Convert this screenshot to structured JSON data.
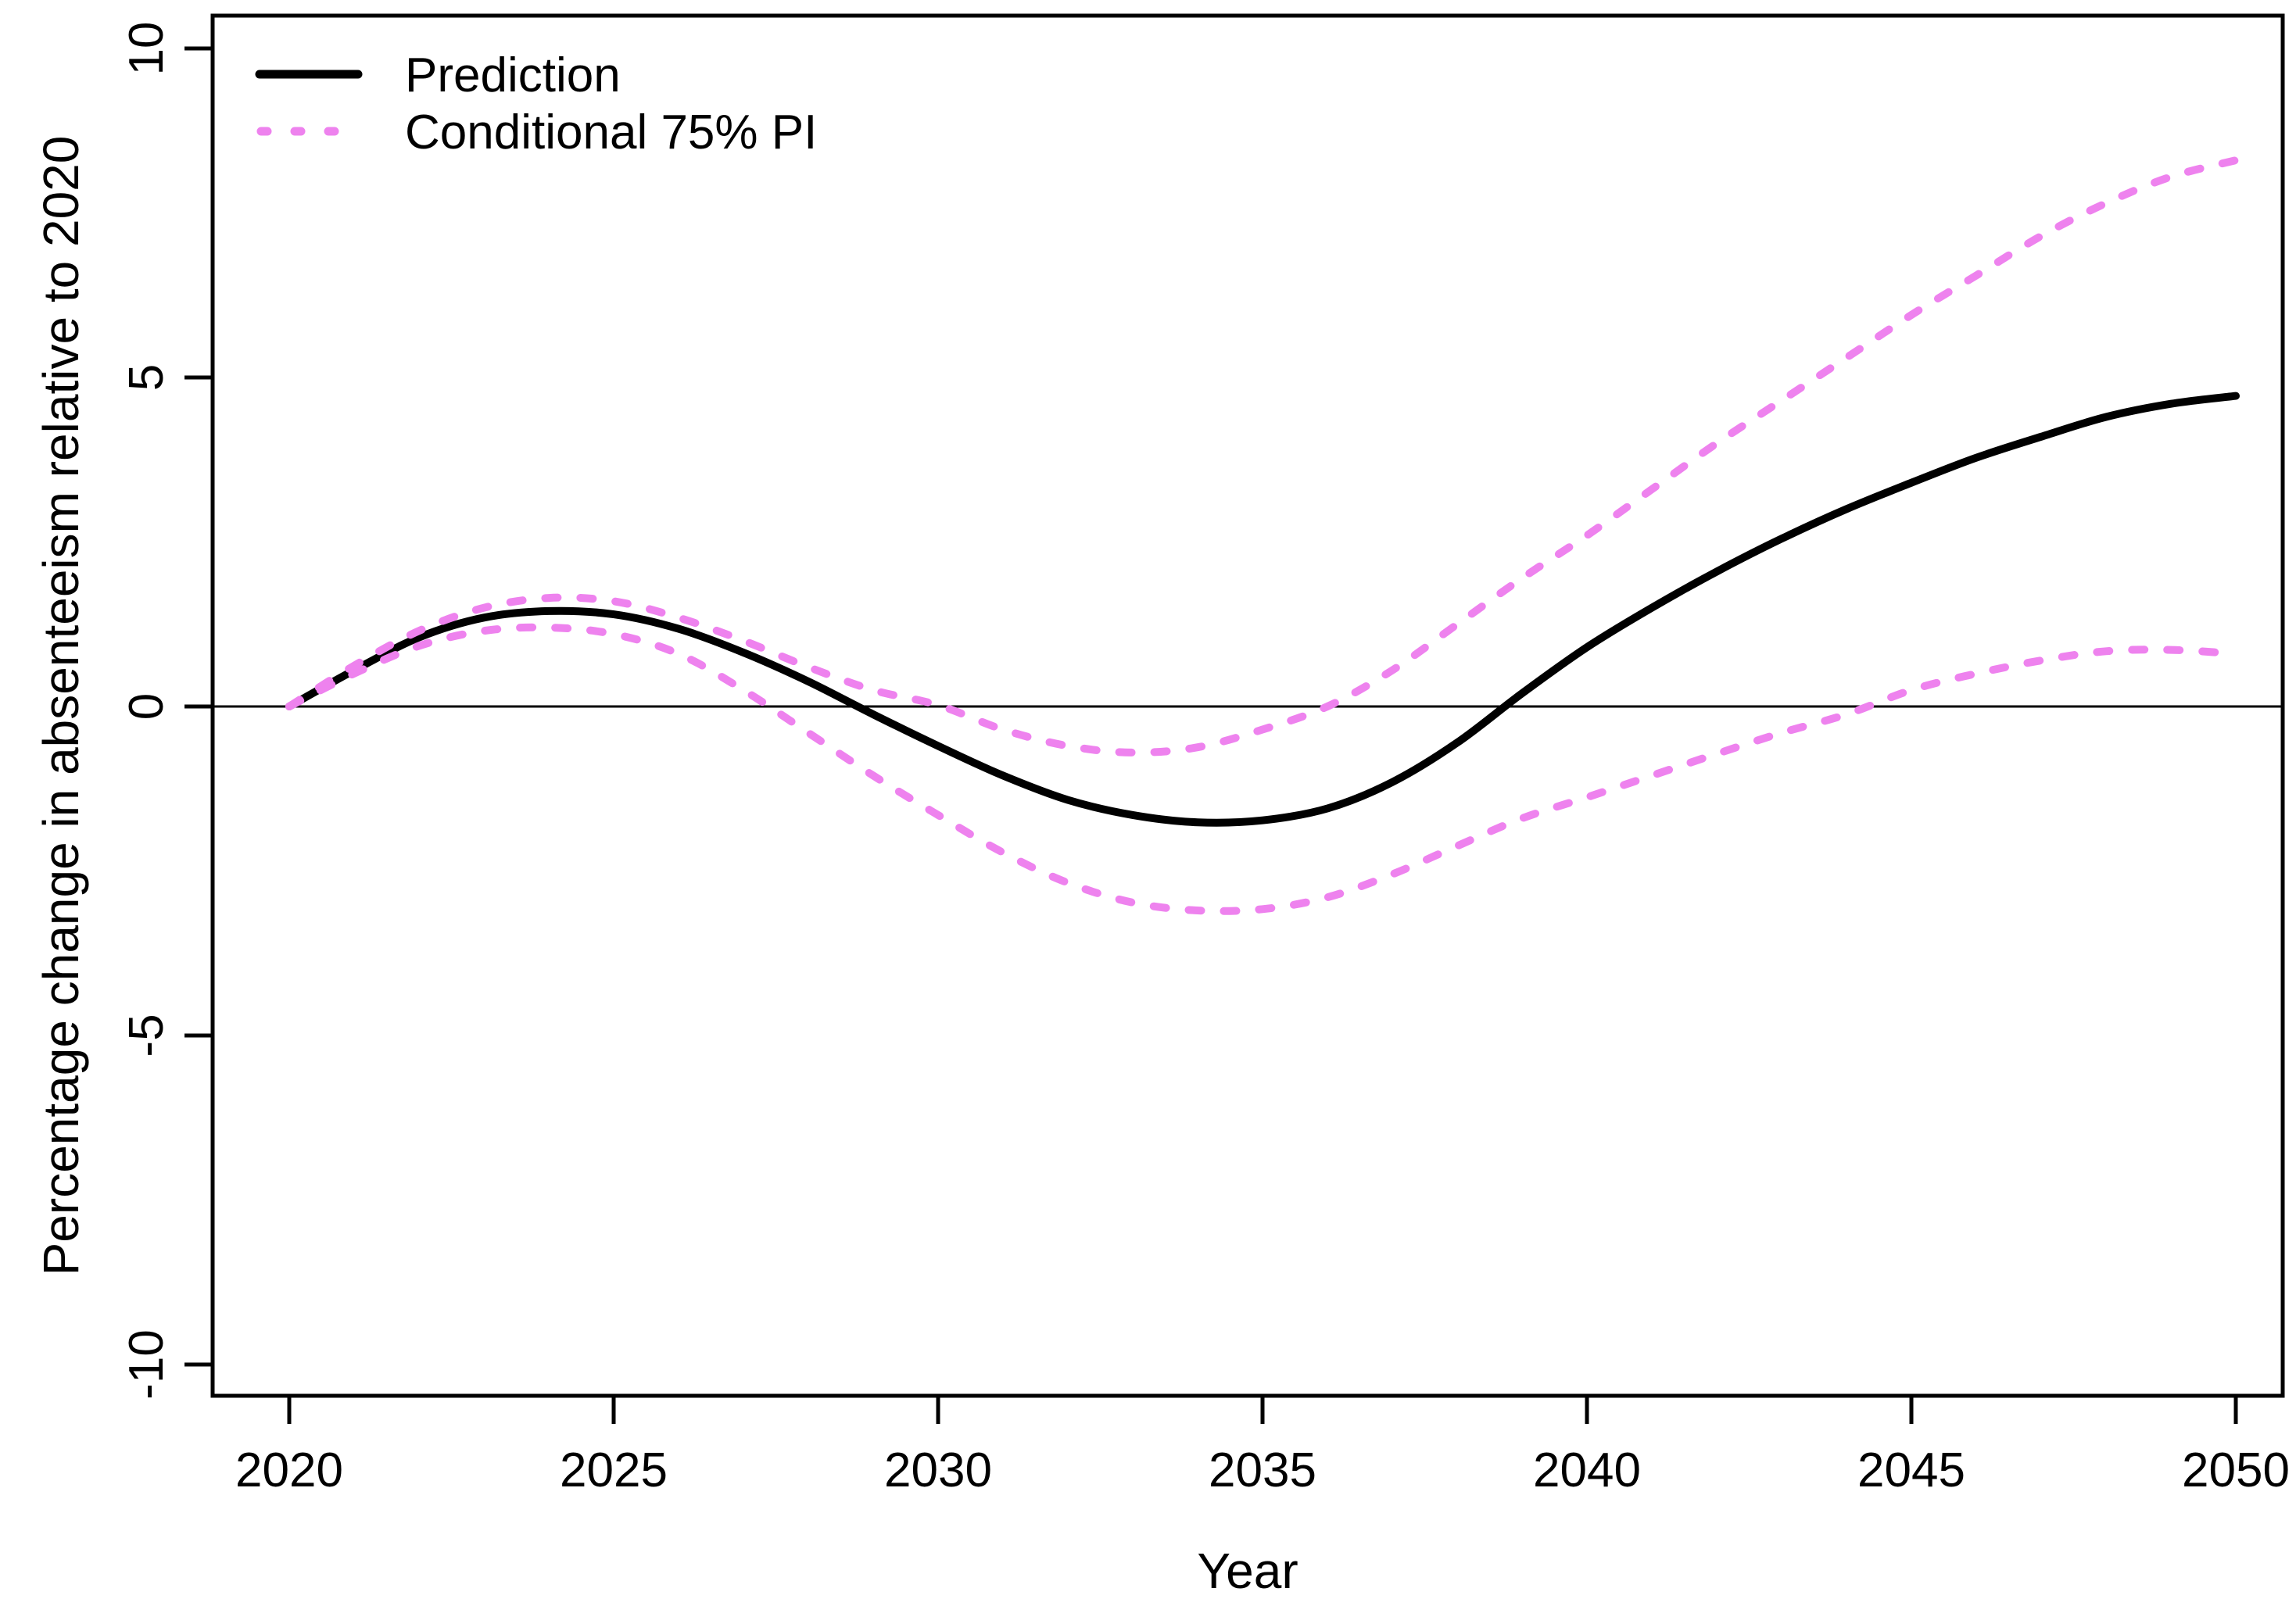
{
  "figure": {
    "background": "#FFFFFF"
  },
  "chart_data": {
    "type": "line",
    "title": "",
    "xlabel": "Year",
    "ylabel": "Percentage change in absenteeism relative to 2020",
    "x_ticks": [
      2020,
      2025,
      2030,
      2035,
      2040,
      2045,
      2050
    ],
    "y_ticks": [
      -10,
      -5,
      0,
      5,
      10
    ],
    "xlim": [
      2018.8,
      2051.2
    ],
    "ylim": [
      -10.5,
      10.5
    ],
    "grid": false,
    "reference_line_y": 0,
    "legend_position": "top-left",
    "x": [
      2020,
      2021,
      2022,
      2023,
      2024,
      2025,
      2026,
      2027,
      2028,
      2029,
      2030,
      2031,
      2032,
      2033,
      2034,
      2035,
      2036,
      2037,
      2038,
      2039,
      2040,
      2041,
      2042,
      2043,
      2044,
      2045,
      2046,
      2047,
      2048,
      2049,
      2050
    ],
    "series": [
      {
        "name": "Prediction",
        "style": "solid",
        "color": "#000000",
        "values": [
          0,
          0.55,
          1.05,
          1.35,
          1.45,
          1.4,
          1.18,
          0.82,
          0.38,
          -0.12,
          -0.6,
          -1.05,
          -1.42,
          -1.65,
          -1.76,
          -1.73,
          -1.55,
          -1.15,
          -0.55,
          0.2,
          0.9,
          1.5,
          2.05,
          2.55,
          3.0,
          3.4,
          3.78,
          4.1,
          4.4,
          4.6,
          4.72
        ]
      },
      {
        "name": "Conditional 75% PI upper",
        "style": "dotted",
        "color": "#EE82EE",
        "values": [
          0,
          0.62,
          1.15,
          1.5,
          1.65,
          1.6,
          1.35,
          1.0,
          0.6,
          0.25,
          0.02,
          -0.35,
          -0.6,
          -0.7,
          -0.62,
          -0.35,
          0.0,
          0.55,
          1.25,
          1.95,
          2.6,
          3.3,
          4.0,
          4.65,
          5.3,
          5.95,
          6.55,
          7.15,
          7.65,
          8.05,
          8.3
        ]
      },
      {
        "name": "Conditional 75% PI lower",
        "style": "dotted",
        "color": "#EE82EE",
        "values": [
          0,
          0.5,
          0.92,
          1.15,
          1.2,
          1.1,
          0.8,
          0.25,
          -0.4,
          -1.05,
          -1.65,
          -2.22,
          -2.68,
          -2.98,
          -3.1,
          -3.08,
          -2.9,
          -2.55,
          -2.12,
          -1.7,
          -1.38,
          -1.05,
          -0.72,
          -0.4,
          -0.12,
          0.25,
          0.5,
          0.7,
          0.84,
          0.86,
          0.8
        ]
      }
    ],
    "legend": [
      {
        "label": "Prediction",
        "style": "solid",
        "color": "#000000"
      },
      {
        "label": "Conditional 75% PI",
        "style": "dotted",
        "color": "#EE82EE"
      }
    ]
  }
}
